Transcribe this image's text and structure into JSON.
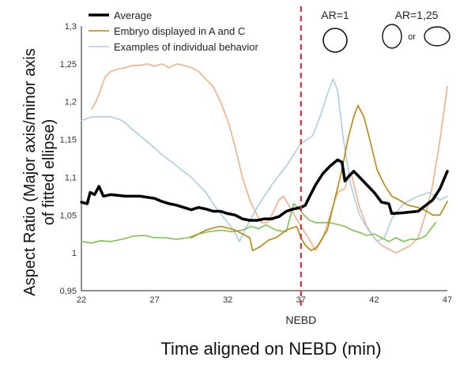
{
  "chart_data": {
    "type": "line",
    "xlabel": "Time aligned on NEBD (min)",
    "ylabel_line1": "Aspect Ratio (Major axis/minor axis",
    "ylabel_line2": "of fitted ellipse)",
    "xlim": [
      22,
      47
    ],
    "ylim": [
      0.95,
      1.3
    ],
    "xticks": [
      22,
      27,
      32,
      37,
      42,
      47
    ],
    "xtick_labels": [
      "22",
      "27",
      "32",
      "37",
      "42",
      "47"
    ],
    "yticks": [
      0.95,
      1.0,
      1.05,
      1.1,
      1.15,
      1.2,
      1.25,
      1.3
    ],
    "ytick_labels": [
      "0,95",
      "1",
      "1,05",
      "1,1",
      "1,15",
      "1,2",
      "1,25",
      "1,3"
    ],
    "grid": false,
    "legend_position": "top-left",
    "legend": [
      "Average",
      "Embryo displayed in A and C",
      "Examples of individual behavior"
    ],
    "annotations": {
      "nebd_x": 37,
      "nebd_label": "NEBD",
      "ar1_label": "AR=1",
      "ar125_label": "AR=1,25",
      "or_label": "or"
    },
    "series": [
      {
        "name": "Average",
        "color": "#000000",
        "width": 3.5,
        "points": [
          [
            22,
            1.067
          ],
          [
            22.4,
            1.065
          ],
          [
            22.6,
            1.08
          ],
          [
            22.9,
            1.077
          ],
          [
            23.2,
            1.088
          ],
          [
            23.5,
            1.075
          ],
          [
            24,
            1.077
          ],
          [
            25,
            1.075
          ],
          [
            26,
            1.075
          ],
          [
            27,
            1.072
          ],
          [
            27.5,
            1.068
          ],
          [
            28,
            1.065
          ],
          [
            28.5,
            1.063
          ],
          [
            29,
            1.06
          ],
          [
            29.5,
            1.057
          ],
          [
            30,
            1.06
          ],
          [
            30.5,
            1.058
          ],
          [
            31,
            1.055
          ],
          [
            31.5,
            1.055
          ],
          [
            32,
            1.052
          ],
          [
            32.5,
            1.05
          ],
          [
            33,
            1.045
          ],
          [
            33.5,
            1.043
          ],
          [
            34,
            1.043
          ],
          [
            34.5,
            1.045
          ],
          [
            35,
            1.045
          ],
          [
            35.5,
            1.048
          ],
          [
            36,
            1.055
          ],
          [
            36.5,
            1.058
          ],
          [
            37,
            1.06
          ],
          [
            37.3,
            1.063
          ],
          [
            37.6,
            1.075
          ],
          [
            38,
            1.09
          ],
          [
            38.5,
            1.105
          ],
          [
            39,
            1.115
          ],
          [
            39.5,
            1.123
          ],
          [
            39.8,
            1.12
          ],
          [
            40,
            1.095
          ],
          [
            40.3,
            1.102
          ],
          [
            40.6,
            1.108
          ],
          [
            41,
            1.1
          ],
          [
            41.5,
            1.09
          ],
          [
            42,
            1.08
          ],
          [
            42.5,
            1.067
          ],
          [
            43,
            1.065
          ],
          [
            43.2,
            1.052
          ],
          [
            44,
            1.053
          ],
          [
            45,
            1.055
          ],
          [
            46,
            1.07
          ],
          [
            46.5,
            1.085
          ],
          [
            47,
            1.108
          ]
        ]
      },
      {
        "name": "Embryo displayed in A and C",
        "color": "#b8860b",
        "width": 1.6,
        "points": [
          [
            29.5,
            1.02
          ],
          [
            30,
            1.025
          ],
          [
            30.5,
            1.03
          ],
          [
            31,
            1.033
          ],
          [
            31.5,
            1.035
          ],
          [
            32,
            1.033
          ],
          [
            32.5,
            1.03
          ],
          [
            33,
            1.025
          ],
          [
            33.5,
            1.02
          ],
          [
            33.7,
            1.003
          ],
          [
            34.2,
            1.008
          ],
          [
            34.8,
            1.017
          ],
          [
            35.3,
            1.02
          ],
          [
            36,
            1.03
          ],
          [
            36.7,
            1.035
          ],
          [
            37,
            1.02
          ],
          [
            37.3,
            1.01
          ],
          [
            37.7,
            1.003
          ],
          [
            38.1,
            1.008
          ],
          [
            38.8,
            1.03
          ],
          [
            39.3,
            1.07
          ],
          [
            39.8,
            1.11
          ],
          [
            40.2,
            1.15
          ],
          [
            40.6,
            1.18
          ],
          [
            40.9,
            1.195
          ],
          [
            41.3,
            1.18
          ],
          [
            41.7,
            1.15
          ],
          [
            42.2,
            1.11
          ],
          [
            42.7,
            1.09
          ],
          [
            43.2,
            1.075
          ],
          [
            43.7,
            1.07
          ],
          [
            44.3,
            1.063
          ],
          [
            45,
            1.06
          ],
          [
            45.6,
            1.055
          ],
          [
            46,
            1.05
          ],
          [
            46.5,
            1.05
          ],
          [
            47,
            1.068
          ]
        ]
      },
      {
        "name": "Examples of individual behavior",
        "color": "#abcde6",
        "width": 1.6,
        "points": [
          [
            22,
            1.175
          ],
          [
            22.7,
            1.18
          ],
          [
            24,
            1.18
          ],
          [
            24.8,
            1.175
          ],
          [
            25.5,
            1.163
          ],
          [
            26.5,
            1.147
          ],
          [
            27.5,
            1.13
          ],
          [
            28.5,
            1.115
          ],
          [
            29.5,
            1.1
          ],
          [
            30,
            1.09
          ],
          [
            30.5,
            1.08
          ],
          [
            31,
            1.065
          ],
          [
            31.5,
            1.052
          ],
          [
            32,
            1.04
          ],
          [
            32.4,
            1.03
          ],
          [
            32.8,
            1.015
          ],
          [
            33.3,
            1.035
          ],
          [
            34,
            1.06
          ],
          [
            35,
            1.09
          ],
          [
            36,
            1.115
          ],
          [
            37,
            1.145
          ],
          [
            37.8,
            1.155
          ],
          [
            38.3,
            1.18
          ],
          [
            38.8,
            1.21
          ],
          [
            39.2,
            1.23
          ],
          [
            39.5,
            1.215
          ],
          [
            39.9,
            1.15
          ],
          [
            40.4,
            1.09
          ],
          [
            41,
            1.05
          ],
          [
            41.6,
            1.03
          ],
          [
            42.2,
            1.015
          ],
          [
            42.7,
            1.02
          ],
          [
            43.2,
            1.045
          ],
          [
            44,
            1.065
          ],
          [
            45,
            1.075
          ],
          [
            45.8,
            1.08
          ],
          [
            46.5,
            1.07
          ],
          [
            47,
            1.075
          ]
        ]
      },
      {
        "name": "",
        "color": "#f0b088",
        "width": 1.6,
        "points": [
          [
            22.7,
            1.19
          ],
          [
            23,
            1.2
          ],
          [
            23.3,
            1.215
          ],
          [
            23.6,
            1.232
          ],
          [
            24,
            1.24
          ],
          [
            24.5,
            1.243
          ],
          [
            25,
            1.245
          ],
          [
            25.5,
            1.248
          ],
          [
            26,
            1.248
          ],
          [
            26.5,
            1.25
          ],
          [
            27,
            1.247
          ],
          [
            27.5,
            1.25
          ],
          [
            28,
            1.245
          ],
          [
            28.5,
            1.25
          ],
          [
            29,
            1.248
          ],
          [
            29.5,
            1.245
          ],
          [
            30,
            1.24
          ],
          [
            30.5,
            1.23
          ],
          [
            31,
            1.22
          ],
          [
            31.5,
            1.2
          ],
          [
            32,
            1.175
          ],
          [
            32.5,
            1.14
          ],
          [
            33,
            1.1
          ],
          [
            33.5,
            1.07
          ],
          [
            34,
            1.05
          ],
          [
            34.3,
            1.04
          ],
          [
            34.7,
            1.04
          ],
          [
            35,
            1.05
          ],
          [
            35.5,
            1.07
          ],
          [
            35.8,
            1.075
          ],
          [
            36.2,
            1.062
          ],
          [
            36.7,
            1.045
          ],
          [
            37,
            1.035
          ],
          [
            37.5,
            1.02
          ],
          [
            38,
            1.003
          ],
          [
            38.5,
            1.02
          ],
          [
            39,
            1.05
          ],
          [
            39.5,
            1.08
          ],
          [
            40,
            1.085
          ],
          [
            40.3,
            1.105
          ],
          [
            40.5,
            1.1
          ],
          [
            41,
            1.06
          ],
          [
            41.5,
            1.035
          ],
          [
            42,
            1.02
          ],
          [
            42.5,
            1.01
          ],
          [
            43,
            1.005
          ],
          [
            43.5,
            1.0
          ],
          [
            44,
            1.005
          ],
          [
            44.5,
            1.01
          ],
          [
            45,
            1.02
          ],
          [
            45.5,
            1.05
          ],
          [
            46,
            1.09
          ],
          [
            46.5,
            1.15
          ],
          [
            47,
            1.22
          ]
        ]
      },
      {
        "name": "",
        "color": "#7cc44e",
        "width": 1.6,
        "points": [
          [
            22,
            1.015
          ],
          [
            22.7,
            1.013
          ],
          [
            23.3,
            1.016
          ],
          [
            24,
            1.015
          ],
          [
            24.8,
            1.018
          ],
          [
            25.5,
            1.022
          ],
          [
            26.3,
            1.023
          ],
          [
            27,
            1.02
          ],
          [
            27.7,
            1.02
          ],
          [
            28.5,
            1.018
          ],
          [
            29.3,
            1.02
          ],
          [
            30,
            1.025
          ],
          [
            30.7,
            1.028
          ],
          [
            31.5,
            1.03
          ],
          [
            32.3,
            1.028
          ],
          [
            33,
            1.03
          ],
          [
            33.6,
            1.035
          ],
          [
            34.1,
            1.032
          ],
          [
            34.6,
            1.037
          ],
          [
            35.3,
            1.03
          ],
          [
            36,
            1.028
          ],
          [
            36.5,
            1.065
          ],
          [
            36.8,
            1.06
          ],
          [
            37.2,
            1.05
          ],
          [
            37.6,
            1.043
          ],
          [
            38,
            1.04
          ],
          [
            39,
            1.04
          ],
          [
            40,
            1.035
          ],
          [
            40.5,
            1.03
          ],
          [
            41,
            1.027
          ],
          [
            41.5,
            1.023
          ],
          [
            42,
            1.025
          ],
          [
            42.5,
            1.02
          ],
          [
            43,
            1.015
          ],
          [
            43.5,
            1.02
          ],
          [
            44,
            1.015
          ],
          [
            44.5,
            1.018
          ],
          [
            45,
            1.018
          ],
          [
            45.5,
            1.022
          ],
          [
            46,
            1.035
          ],
          [
            46.2,
            1.04
          ]
        ]
      }
    ]
  }
}
